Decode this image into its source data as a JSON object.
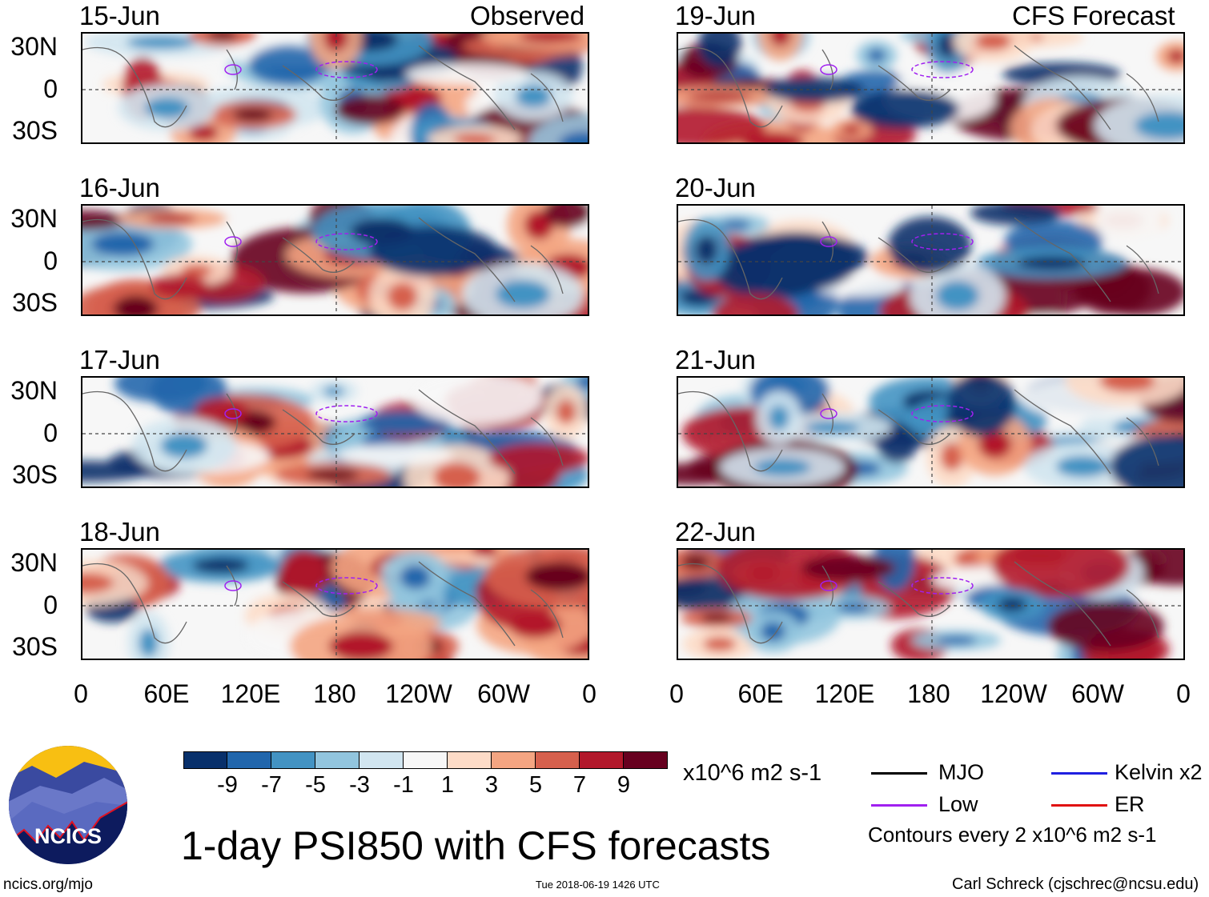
{
  "left_header": "Observed",
  "right_header": "CFS Forecast",
  "panels_left": [
    "15-Jun",
    "16-Jun",
    "17-Jun",
    "18-Jun"
  ],
  "panels_right": [
    "19-Jun",
    "20-Jun",
    "21-Jun",
    "22-Jun"
  ],
  "lat_labels": [
    "30N",
    "0",
    "30S"
  ],
  "lon_labels": [
    "0",
    "60E",
    "120E",
    "180",
    "120W",
    "60W",
    "0"
  ],
  "colorbar": {
    "colors": [
      "#08306b",
      "#2166ac",
      "#4393c3",
      "#92c5de",
      "#d1e5f0",
      "#f7f7f7",
      "#fddbc7",
      "#f4a582",
      "#d6604d",
      "#b2182b",
      "#67001f"
    ],
    "labels": [
      "-9",
      "-7",
      "-5",
      "-3",
      "-1",
      "1",
      "3",
      "5",
      "7",
      "9"
    ],
    "units": "x10^6 m2 s-1"
  },
  "legend": {
    "items": [
      {
        "label": "MJO",
        "color": "#000000"
      },
      {
        "label": "Kelvin x2",
        "color": "#2020e0"
      },
      {
        "label": "Low",
        "color": "#a020f0"
      },
      {
        "label": "ER",
        "color": "#e01010"
      }
    ],
    "note": "Contours every 2 x10^6 m2 s-1"
  },
  "title": "1-day PSI850 with CFS forecasts",
  "logo_text": "NCICS",
  "footer_left": "ncics.org/mjo",
  "footer_center": "Tue 2018-06-19 1426 UTC",
  "footer_right": "Carl Schreck (cjschrec@ncsu.edu)"
}
